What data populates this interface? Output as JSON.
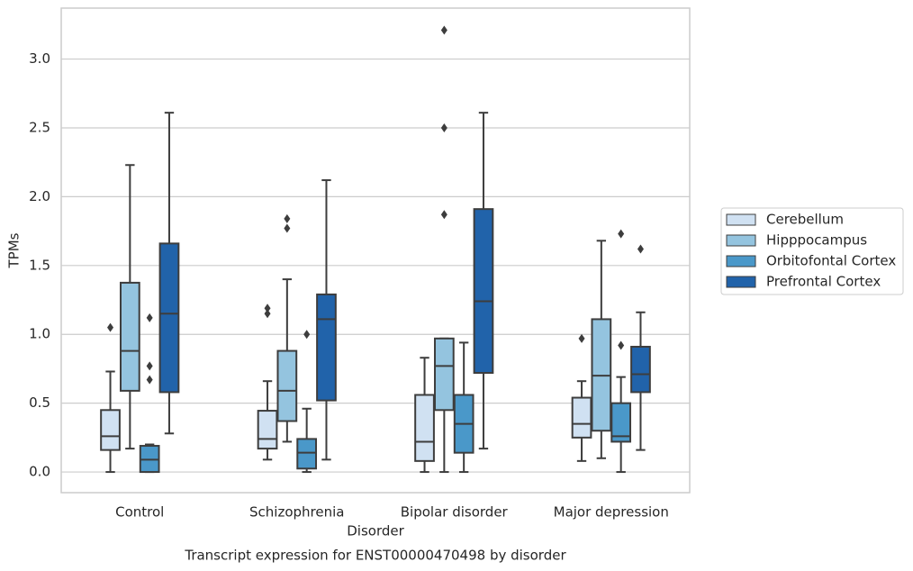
{
  "chart_data": {
    "type": "box",
    "title": "Transcript expression for ENST00000470498 by disorder",
    "x_label": "Disorder",
    "y_label": "TPMs",
    "categories": [
      "Control",
      "Schizophrenia",
      "Bipolar disorder",
      "Major depression"
    ],
    "ylim": [
      -0.15,
      3.37
    ],
    "yticks": [
      {
        "value": 0,
        "label": "0.0"
      },
      0.5,
      {
        "value": 1,
        "label": "1.0"
      },
      1.5,
      {
        "value": 2,
        "label": "2.0"
      },
      2.5,
      {
        "value": 3,
        "label": "3.0"
      }
    ],
    "grid": true,
    "legend": "right",
    "series": [
      {
        "name": "Cerebellum",
        "color": "#d0e1f2",
        "values": [
          {
            "low": 0,
            "q1": 0.16,
            "median": 0.26,
            "q3": 0.45,
            "high": 0.73,
            "outliers": [
              1.05
            ]
          },
          {
            "low": 0.09,
            "q1": 0.17,
            "median": 0.24,
            "q3": 0.445,
            "high": 0.66,
            "outliers": [
              1.19,
              1.15
            ]
          },
          {
            "low": 0,
            "q1": 0.08,
            "median": 0.22,
            "q3": 0.56,
            "high": 0.83,
            "outliers": []
          },
          {
            "low": 0.08,
            "q1": 0.25,
            "median": 0.35,
            "q3": 0.54,
            "high": 0.66,
            "outliers": [
              0.97
            ]
          }
        ]
      },
      {
        "name": "Hipppocampus",
        "color": "#94c4df",
        "values": [
          {
            "low": 0.17,
            "q1": 0.59,
            "median": 0.88,
            "q3": 1.375,
            "high": 2.23,
            "outliers": []
          },
          {
            "low": 0.22,
            "q1": 0.37,
            "median": 0.59,
            "q3": 0.88,
            "high": 1.4,
            "outliers": [
              1.84,
              1.77
            ]
          },
          {
            "low": 0,
            "q1": 0.45,
            "median": 0.77,
            "q3": 0.97,
            "high": 0.97,
            "outliers": [
              3.21,
              2.5,
              1.87
            ]
          },
          {
            "low": 0.1,
            "q1": 0.3,
            "median": 0.7,
            "q3": 1.11,
            "high": 1.68,
            "outliers": []
          }
        ]
      },
      {
        "name": "Orbitofontal Cortex",
        "color": "#4a98c9",
        "values": [
          {
            "low": 0,
            "q1": 0,
            "median": 0.09,
            "q3": 0.19,
            "high": 0.2,
            "outliers": [
              1.12,
              0.77,
              0.67
            ]
          },
          {
            "low": 0,
            "q1": 0.025,
            "median": 0.14,
            "q3": 0.24,
            "high": 0.46,
            "outliers": [
              1.0
            ]
          },
          {
            "low": 0,
            "q1": 0.14,
            "median": 0.35,
            "q3": 0.56,
            "high": 0.94,
            "outliers": []
          },
          {
            "low": 0,
            "q1": 0.22,
            "median": 0.26,
            "q3": 0.5,
            "high": 0.69,
            "outliers": [
              1.73,
              0.92
            ]
          }
        ]
      },
      {
        "name": "Prefrontal Cortex",
        "color": "#2163aa",
        "values": [
          {
            "low": 0.28,
            "q1": 0.58,
            "median": 1.15,
            "q3": 1.66,
            "high": 2.61,
            "outliers": []
          },
          {
            "low": 0.09,
            "q1": 0.52,
            "median": 1.11,
            "q3": 1.29,
            "high": 2.12,
            "outliers": []
          },
          {
            "low": 0.17,
            "q1": 0.72,
            "median": 1.24,
            "q3": 1.91,
            "high": 2.61,
            "outliers": []
          },
          {
            "low": 0.16,
            "q1": 0.58,
            "median": 0.71,
            "q3": 0.91,
            "high": 1.16,
            "outliers": [
              1.62
            ]
          }
        ]
      }
    ]
  }
}
